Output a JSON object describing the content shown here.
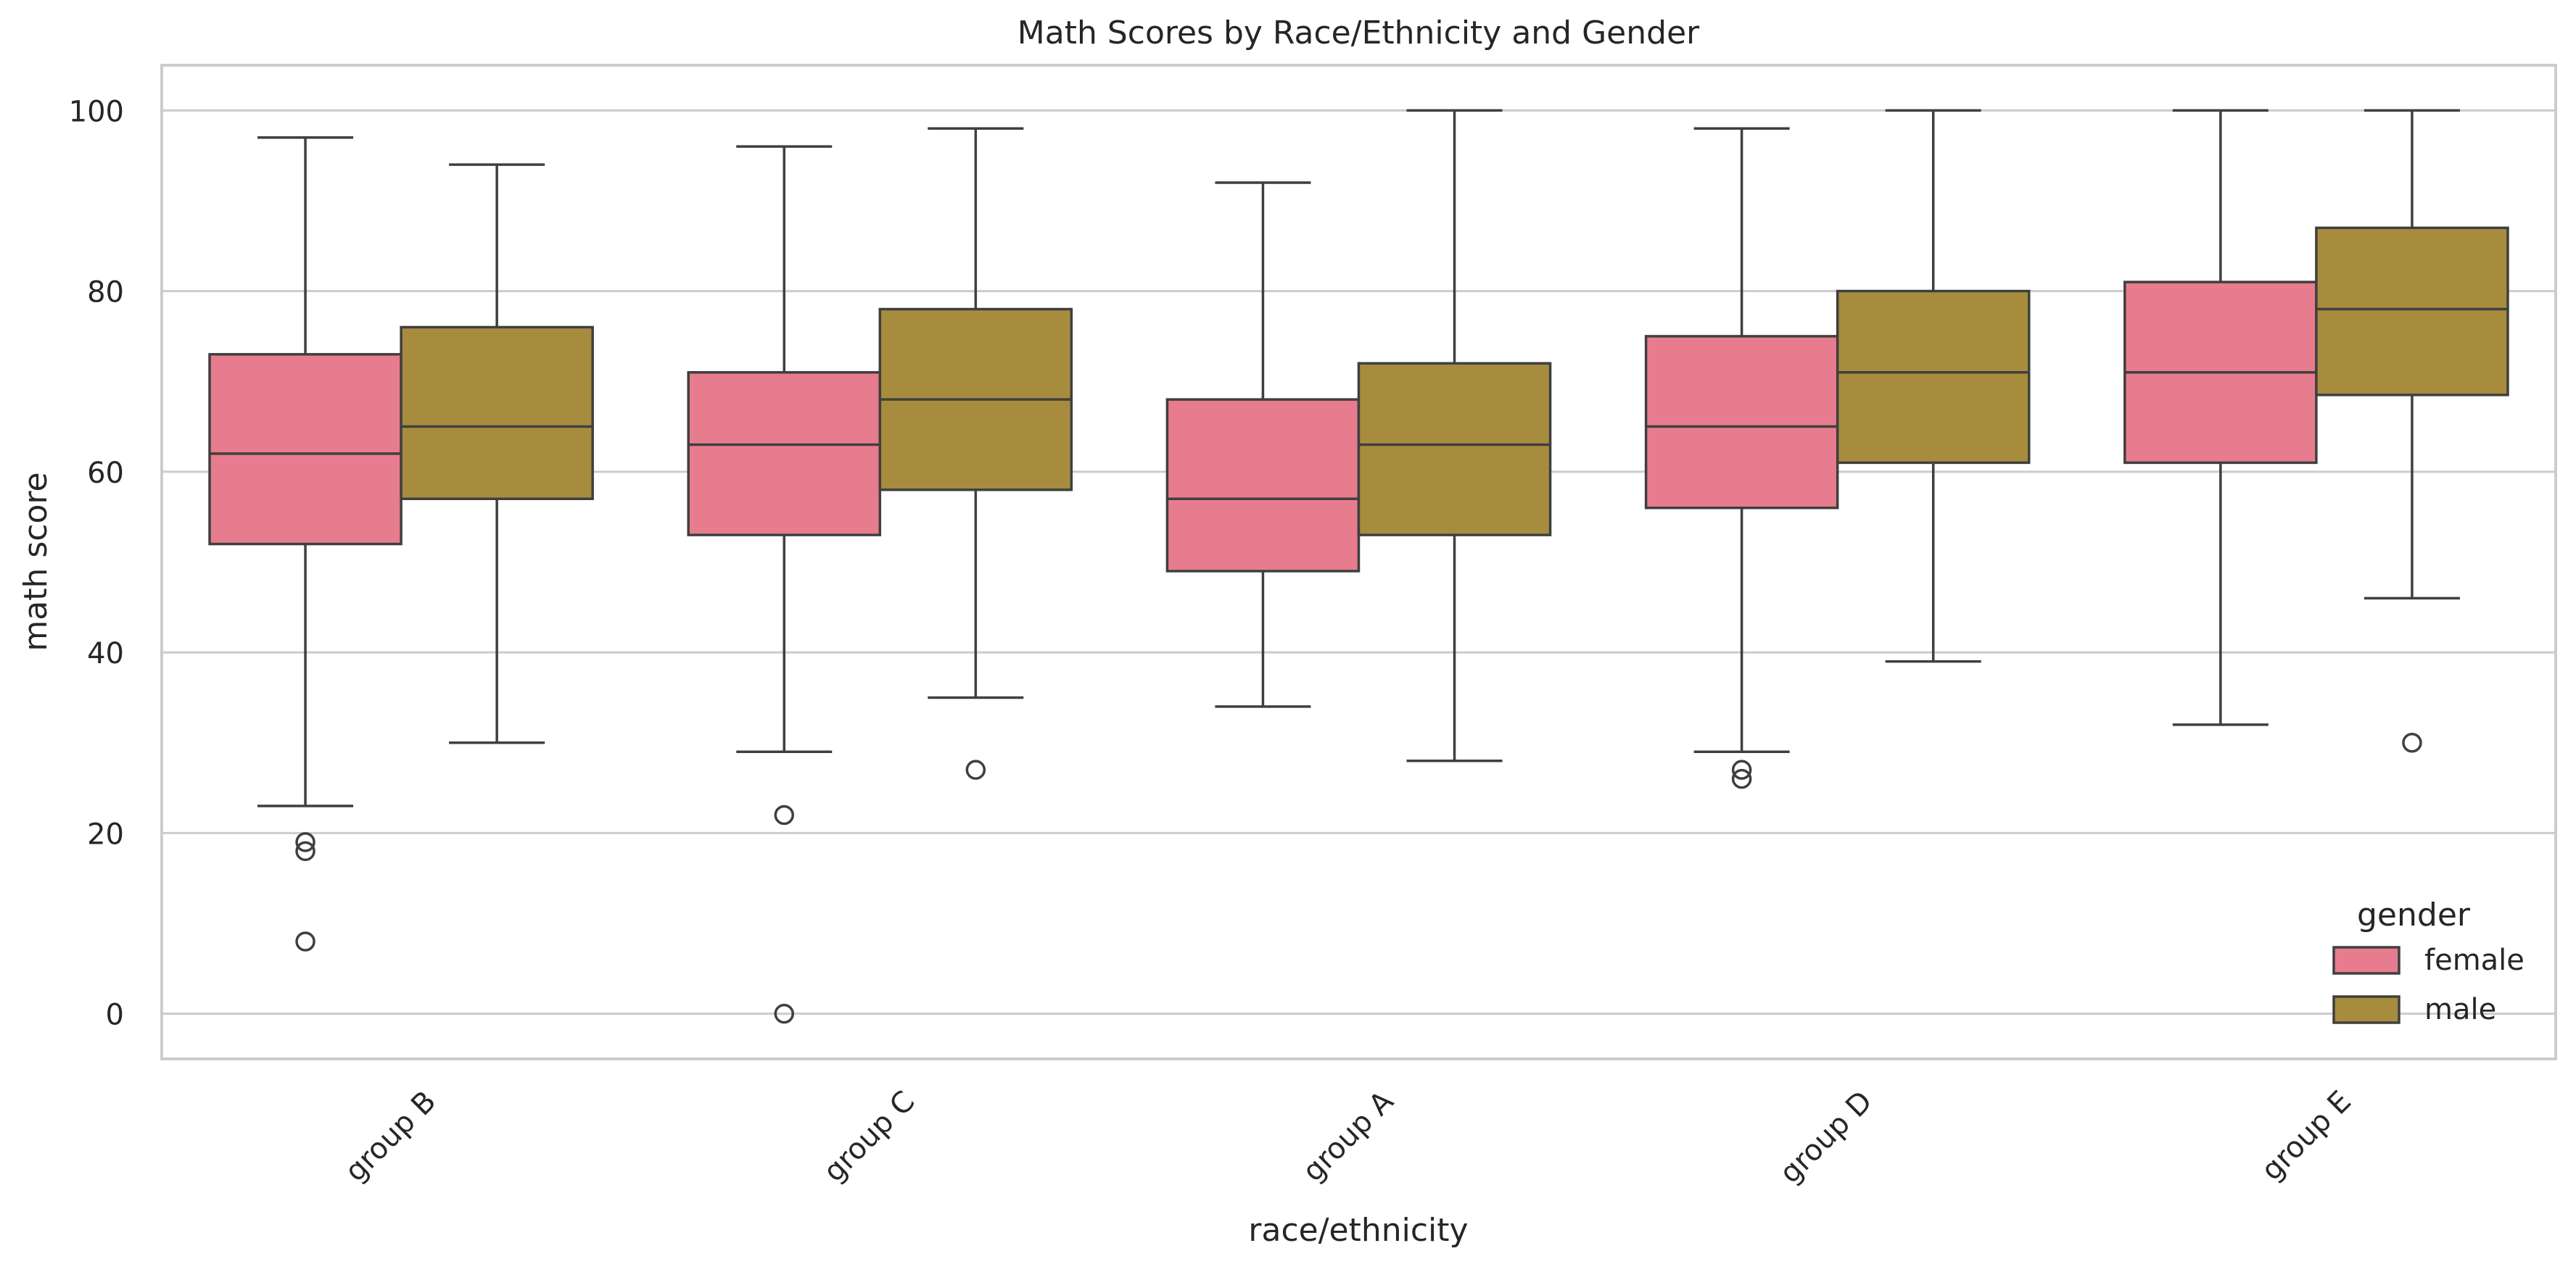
{
  "chart_data": {
    "type": "box",
    "title": "Math Scores by Race/Ethnicity and Gender",
    "xlabel": "race/ethnicity",
    "ylabel": "math score",
    "ylim": [
      -5,
      105
    ],
    "yticks": [
      0,
      20,
      40,
      60,
      80,
      100
    ],
    "grid": true,
    "categories": [
      "group B",
      "group C",
      "group A",
      "group D",
      "group E"
    ],
    "legend": {
      "title": "gender",
      "position": "lower-right"
    },
    "series": [
      {
        "name": "female",
        "color": "#e77c8e",
        "boxes": [
          {
            "whisker_low": 23,
            "q1": 52,
            "median": 62,
            "q3": 73,
            "whisker_high": 97,
            "outliers": [
              8,
              18,
              19
            ]
          },
          {
            "whisker_low": 29,
            "q1": 53,
            "median": 63,
            "q3": 71,
            "whisker_high": 96,
            "outliers": [
              0,
              22
            ]
          },
          {
            "whisker_low": 34,
            "q1": 49,
            "median": 57,
            "q3": 68,
            "whisker_high": 92,
            "outliers": []
          },
          {
            "whisker_low": 29,
            "q1": 56,
            "median": 65,
            "q3": 75,
            "whisker_high": 98,
            "outliers": [
              26,
              27
            ]
          },
          {
            "whisker_low": 32,
            "q1": 61,
            "median": 71,
            "q3": 81,
            "whisker_high": 100,
            "outliers": []
          }
        ]
      },
      {
        "name": "male",
        "color": "#a88c3e",
        "boxes": [
          {
            "whisker_low": 30,
            "q1": 57,
            "median": 65,
            "q3": 76,
            "whisker_high": 94,
            "outliers": []
          },
          {
            "whisker_low": 35,
            "q1": 58,
            "median": 68,
            "q3": 78,
            "whisker_high": 98,
            "outliers": [
              27
            ]
          },
          {
            "whisker_low": 28,
            "q1": 53,
            "median": 63,
            "q3": 72,
            "whisker_high": 100,
            "outliers": []
          },
          {
            "whisker_low": 39,
            "q1": 61,
            "median": 71,
            "q3": 80,
            "whisker_high": 100,
            "outliers": []
          },
          {
            "whisker_low": 46,
            "q1": 68.5,
            "median": 78,
            "q3": 87,
            "whisker_high": 100,
            "outliers": [
              30
            ]
          }
        ]
      }
    ]
  }
}
